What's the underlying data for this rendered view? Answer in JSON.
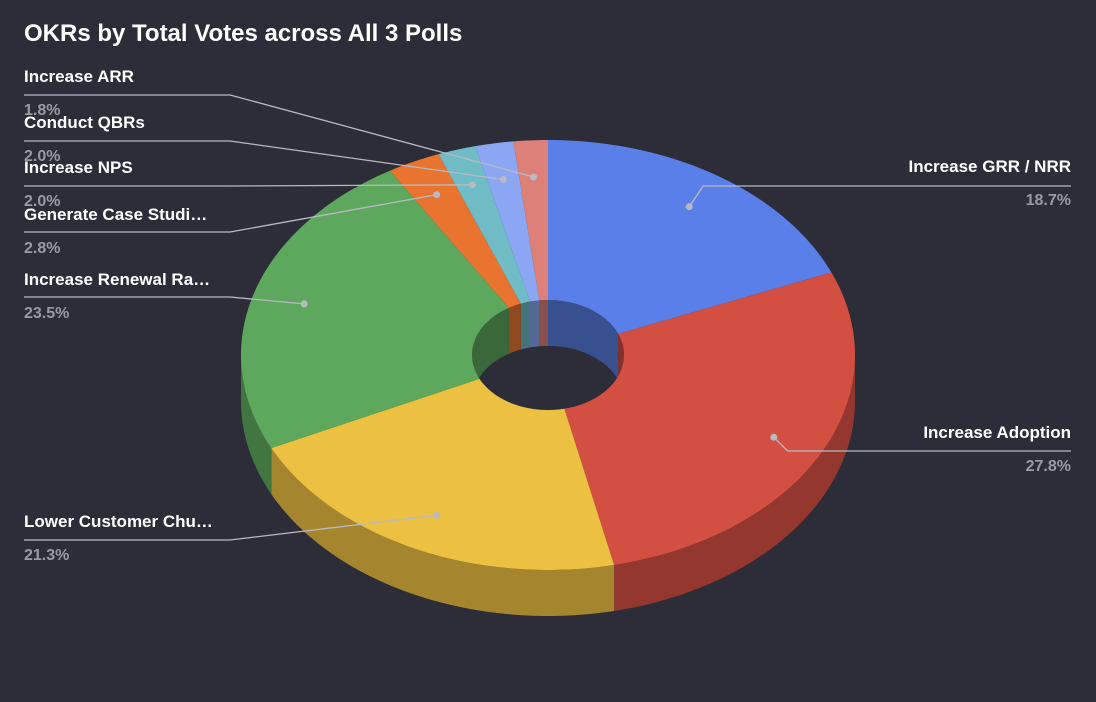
{
  "chart_data": {
    "type": "pie",
    "style": "3d-donut",
    "title": "OKRs by Total Votes across All 3 Polls",
    "legend": "none",
    "slices": [
      {
        "label": "Increase GRR / NRR",
        "value": 18.7,
        "display": "18.7%",
        "color": "#5b7fe8"
      },
      {
        "label": "Increase Adoption",
        "value": 27.8,
        "display": "27.8%",
        "color": "#d34f42"
      },
      {
        "label": "Lower Customer Chu…",
        "value": 21.3,
        "display": "21.3%",
        "color": "#ecc041"
      },
      {
        "label": "Increase Renewal Ra…",
        "value": 23.5,
        "display": "23.5%",
        "color": "#5ea85d"
      },
      {
        "label": "Generate Case Studi…",
        "value": 2.8,
        "display": "2.8%",
        "color": "#e9742f"
      },
      {
        "label": "Increase NPS",
        "value": 2.0,
        "display": "2.0%",
        "color": "#6fbcc6"
      },
      {
        "label": "Conduct QBRs",
        "value": 2.0,
        "display": "2.0%",
        "color": "#8ba7f3"
      },
      {
        "label": "Increase ARR",
        "value": 1.8,
        "display": "1.8%",
        "color": "#dd8078"
      }
    ]
  }
}
